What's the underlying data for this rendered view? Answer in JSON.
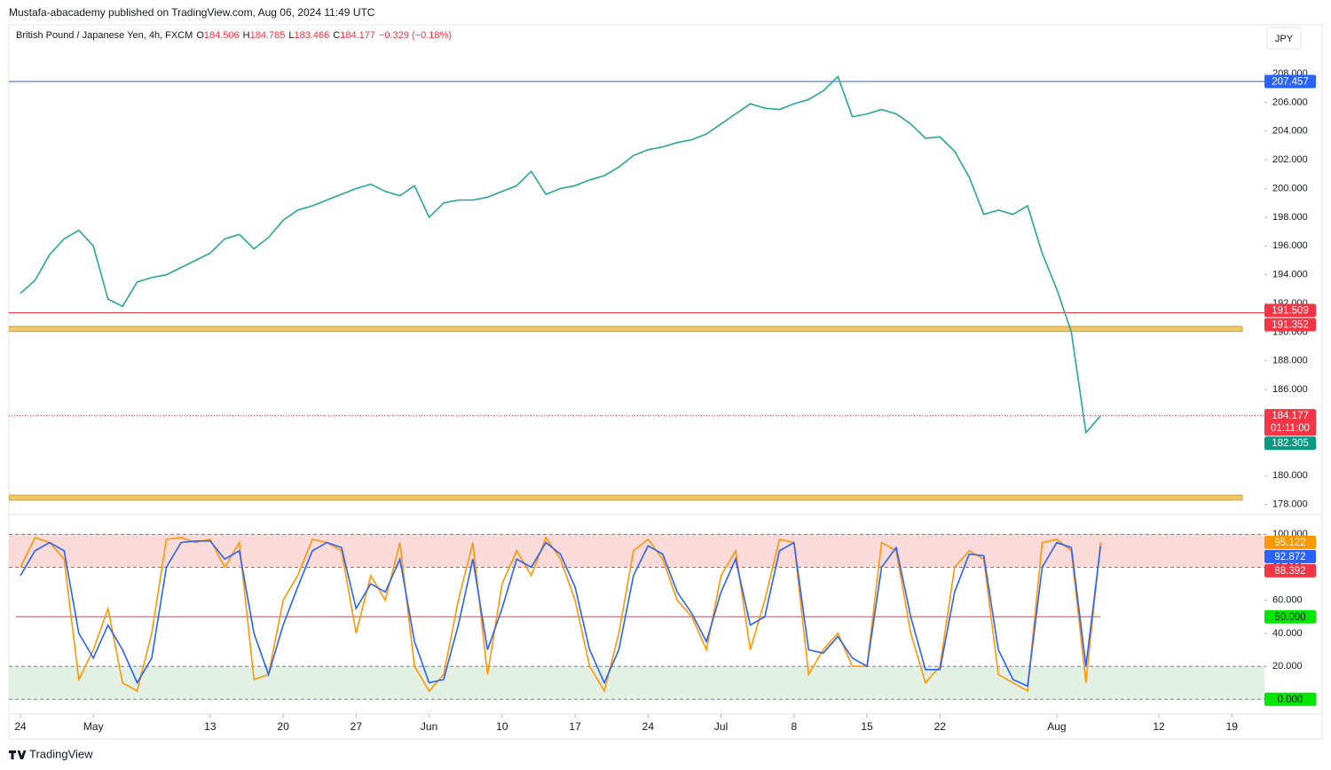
{
  "header": {
    "publisher": "Mustafa-abacademy published on TradingView.com, Aug 06, 2024 11:49 UTC",
    "symbol": "British Pound / Japanese Yen, 4h, FXCM",
    "ohlc": [
      {
        "key": "O",
        "value": "184.506"
      },
      {
        "key": "H",
        "value": "184.785"
      },
      {
        "key": "L",
        "value": "183.466"
      },
      {
        "key": "C",
        "value": "184.177"
      }
    ],
    "change": "−0.329 (−0.18%)",
    "currency": "JPY"
  },
  "footer": {
    "brand": "TradingView"
  },
  "chart_data": [
    {
      "type": "line",
      "xlim": [
        -0.79,
        85.23
      ],
      "xticks": [
        {
          "value": 0,
          "label": "24"
        },
        {
          "value": 5,
          "label": "May"
        },
        {
          "value": 13,
          "label": "13"
        },
        {
          "value": 18,
          "label": "20"
        },
        {
          "value": 23,
          "label": "27"
        },
        {
          "value": 28,
          "label": "Jun"
        },
        {
          "value": 33,
          "label": "10"
        },
        {
          "value": 38,
          "label": "17"
        },
        {
          "value": 43,
          "label": "24"
        },
        {
          "value": 48,
          "label": "Jul"
        },
        {
          "value": 53,
          "label": "8"
        },
        {
          "value": 58,
          "label": "15"
        },
        {
          "value": 63,
          "label": "22"
        },
        {
          "value": 71,
          "label": "Aug"
        },
        {
          "value": 78,
          "label": "12"
        },
        {
          "value": 83,
          "label": "19"
        }
      ],
      "ylim": [
        177.3,
        211.4
      ],
      "yticks": [
        {
          "value": 178,
          "label": "178.000"
        },
        {
          "value": 180,
          "label": "180.000"
        },
        {
          "value": 182,
          "label": "182.000"
        },
        {
          "value": 184,
          "label": "184.000"
        },
        {
          "value": 186,
          "label": "186.000"
        },
        {
          "value": 188,
          "label": "188.000"
        },
        {
          "value": 190,
          "label": "190.000"
        },
        {
          "value": 192,
          "label": "192.000"
        },
        {
          "value": 194,
          "label": "194.000"
        },
        {
          "value": 196,
          "label": "196.000"
        },
        {
          "value": 198,
          "label": "198.000"
        },
        {
          "value": 200,
          "label": "200.000"
        },
        {
          "value": 202,
          "label": "202.000"
        },
        {
          "value": 204,
          "label": "204.000"
        },
        {
          "value": 206,
          "label": "206.000"
        },
        {
          "value": 208,
          "label": "208.000"
        }
      ],
      "x": [
        0,
        1,
        2,
        3,
        4,
        5,
        6,
        7,
        8,
        9,
        10,
        11,
        12,
        13,
        14,
        15,
        16,
        17,
        18,
        19,
        20,
        21,
        22,
        23,
        24,
        25,
        26,
        27,
        28,
        29,
        30,
        31,
        32,
        33,
        34,
        35,
        36,
        37,
        38,
        39,
        40,
        41,
        42,
        43,
        44,
        45,
        46,
        47,
        48,
        49,
        50,
        51,
        52,
        53,
        54,
        55,
        56,
        57,
        58,
        59,
        60,
        61,
        62,
        63,
        64,
        65,
        66,
        67,
        68,
        69,
        70,
        71,
        72,
        73,
        74
      ],
      "series": [
        {
          "color": "#26a69a",
          "values": [
            192.7,
            193.6,
            195.4,
            196.5,
            197.1,
            196.0,
            192.3,
            191.8,
            193.5,
            193.8,
            194.0,
            194.5,
            195.0,
            195.5,
            196.5,
            196.8,
            195.8,
            196.6,
            197.8,
            198.5,
            198.8,
            199.2,
            199.6,
            200.0,
            200.3,
            199.8,
            199.5,
            200.2,
            198.0,
            199.0,
            199.2,
            199.2,
            199.4,
            199.8,
            200.2,
            201.2,
            199.6,
            200.0,
            200.2,
            200.6,
            200.9,
            201.5,
            202.3,
            202.7,
            202.9,
            203.2,
            203.4,
            203.8,
            204.5,
            205.2,
            205.9,
            205.6,
            205.5,
            205.9,
            206.2,
            206.8,
            207.8,
            205.0,
            205.2,
            205.5,
            205.2,
            204.5,
            203.5,
            203.6,
            202.6,
            200.8,
            198.2,
            198.5,
            198.2,
            198.8,
            195.5,
            193.0,
            190.0,
            183.0,
            184.177
          ]
        }
      ],
      "lines": [
        {
          "value": 207.457,
          "color": "#2962ff",
          "style": "solid"
        },
        {
          "value": 191.352,
          "color": "#f23645",
          "style": "solid"
        },
        {
          "value": 184.177,
          "color": "#f23645",
          "style": "dotted"
        }
      ],
      "zones": [
        {
          "low": 190.05,
          "high": 190.4,
          "color": "#f0c76a"
        },
        {
          "low": 178.3,
          "high": 178.65,
          "color": "#f0c76a"
        }
      ],
      "tags": [
        {
          "value": 207.457,
          "color": "#2962ff"
        },
        {
          "value": 191.509,
          "color": "#f23645"
        },
        {
          "value": 191.352,
          "color": "#f23645"
        },
        {
          "value": 184.177,
          "color": "#f23645",
          "countdown": "01:11:00"
        },
        {
          "value": 182.305,
          "color": "#089981"
        }
      ]
    },
    {
      "type": "line",
      "ylim": [
        -9,
        112
      ],
      "yticks": [
        {
          "value": 20,
          "label": "20.000"
        },
        {
          "value": 40,
          "label": "40.000"
        },
        {
          "value": 60,
          "label": "60.000"
        },
        {
          "value": 80,
          "label": "80.000"
        },
        {
          "value": 100,
          "label": "100.000"
        }
      ],
      "bands": [
        {
          "low": 80,
          "high": 100,
          "color": "#fbdada"
        },
        {
          "low": 0,
          "high": 20,
          "color": "#e3f1e4"
        }
      ],
      "levels": [
        100,
        80,
        20,
        0
      ],
      "midline": {
        "value": 50,
        "color": "#f23645"
      },
      "x": [
        0,
        1,
        2,
        3,
        4,
        5,
        6,
        7,
        8,
        9,
        10,
        11,
        12,
        13,
        14,
        15,
        16,
        17,
        18,
        19,
        20,
        21,
        22,
        23,
        24,
        25,
        26,
        27,
        28,
        29,
        30,
        31,
        32,
        33,
        34,
        35,
        36,
        37,
        38,
        39,
        40,
        41,
        42,
        43,
        44,
        45,
        46,
        47,
        48,
        49,
        50,
        51,
        52,
        53,
        54,
        55,
        56,
        57,
        58,
        59,
        60,
        61,
        62,
        63,
        64,
        65,
        66,
        67,
        68,
        69,
        70,
        71,
        72,
        73,
        74
      ],
      "series": [
        {
          "color": "#ff9800",
          "values": [
            80,
            98,
            95,
            85,
            12,
            30,
            55,
            10,
            5,
            40,
            97,
            98,
            95,
            97,
            80,
            95,
            12,
            15,
            60,
            75,
            97,
            95,
            90,
            40,
            75,
            60,
            95,
            20,
            5,
            15,
            60,
            95,
            15,
            70,
            90,
            75,
            98,
            85,
            60,
            20,
            5,
            40,
            90,
            97,
            85,
            60,
            50,
            30,
            75,
            90,
            30,
            60,
            97,
            95,
            15,
            30,
            40,
            20,
            20,
            95,
            90,
            40,
            10,
            20,
            80,
            90,
            85,
            15,
            10,
            5,
            95,
            97,
            90,
            10,
            95.122
          ]
        },
        {
          "color": "#2962ff",
          "values": [
            75,
            90,
            95,
            90,
            40,
            25,
            45,
            30,
            10,
            25,
            80,
            95,
            96,
            96,
            85,
            90,
            40,
            15,
            45,
            68,
            90,
            95,
            92,
            55,
            70,
            65,
            85,
            35,
            10,
            12,
            45,
            85,
            30,
            55,
            85,
            80,
            95,
            88,
            68,
            30,
            10,
            30,
            75,
            93,
            88,
            65,
            52,
            35,
            65,
            85,
            45,
            50,
            90,
            95,
            30,
            28,
            38,
            25,
            20,
            80,
            92,
            50,
            18,
            18,
            65,
            88,
            87,
            30,
            12,
            8,
            80,
            95,
            92,
            20,
            92.872
          ]
        }
      ],
      "tags": [
        {
          "value": 95.122,
          "color": "#ff9800"
        },
        {
          "value": 92.872,
          "color": "#2962ff"
        },
        {
          "value": 88.392,
          "color": "#f23645"
        },
        {
          "value": 50,
          "label": "50.000",
          "color": "#00e600"
        },
        {
          "value": 0,
          "label": "0.000",
          "color": "#00e600"
        }
      ]
    }
  ]
}
